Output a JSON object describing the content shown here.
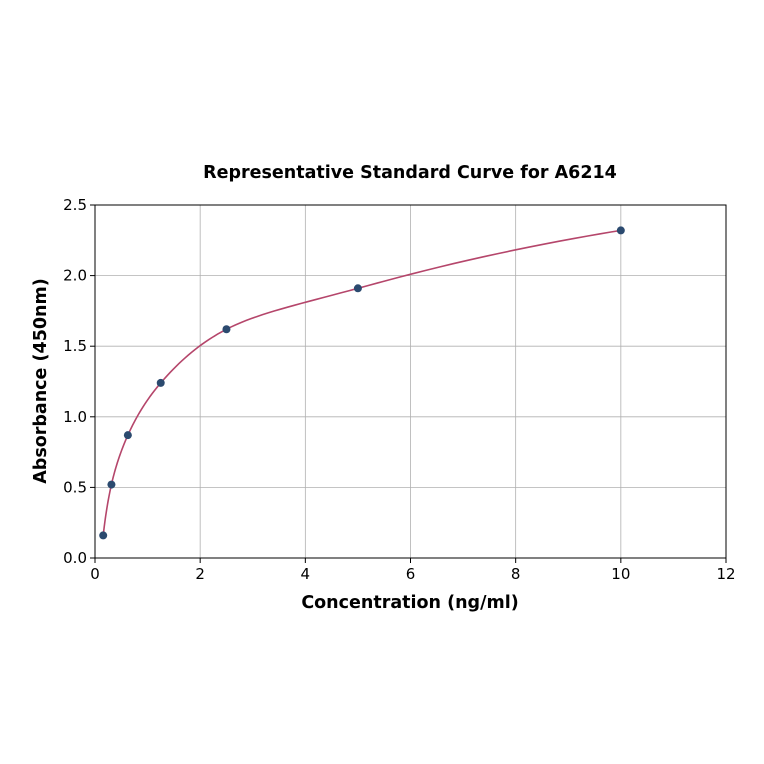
{
  "chart_data": {
    "type": "scatter",
    "title": "Representative Standard Curve for A6214",
    "xlabel": "Concentration (ng/ml)",
    "ylabel": "Absorbance (450nm)",
    "xlim": [
      0,
      12
    ],
    "ylim": [
      0,
      2.5
    ],
    "xticks": [
      "0",
      "2",
      "4",
      "6",
      "8",
      "10",
      "12"
    ],
    "yticks": [
      "0.0",
      "0.5",
      "1.0",
      "1.5",
      "2.0",
      "2.5"
    ],
    "grid": true,
    "points": {
      "x": [
        0.156,
        0.3125,
        0.625,
        1.25,
        2.5,
        5,
        10
      ],
      "y": [
        0.16,
        0.52,
        0.87,
        1.24,
        1.62,
        1.91,
        2.32
      ]
    },
    "fit_curve": true,
    "colors": {
      "points": "#2b4a6f",
      "curve": "#b5466b",
      "grid": "#b0b0b0"
    }
  }
}
